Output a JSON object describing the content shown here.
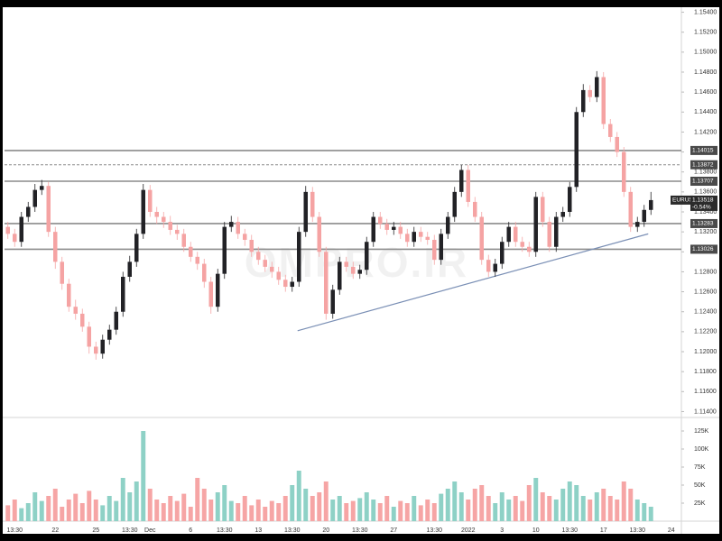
{
  "chart_data": {
    "type": "candlestick",
    "symbol": "EURUSD",
    "last_label": "1.13518",
    "change": "-0.54%",
    "watermark": "OMPRO.IR",
    "up_color": "#222226",
    "down_color": "#f5a3a3",
    "volume_up_color": "#8ed1c6",
    "volume_down_color": "#f6a5a5",
    "level_color": "#8c8c8c",
    "trend_color": "#7a8fb5",
    "categories": [
      null,
      "13:30",
      null,
      null,
      null,
      null,
      null,
      "22",
      null,
      null,
      null,
      null,
      null,
      "25",
      null,
      null,
      null,
      null,
      "13:30",
      null,
      null,
      "Dec",
      null,
      null,
      null,
      null,
      null,
      "6",
      null,
      null,
      null,
      null,
      "13:30",
      null,
      null,
      null,
      null,
      "13",
      null,
      null,
      null,
      null,
      "13:30",
      null,
      null,
      null,
      null,
      "20",
      null,
      null,
      null,
      null,
      "13:30",
      null,
      null,
      null,
      null,
      "27",
      null,
      null,
      null,
      null,
      null,
      "13:30",
      null,
      null,
      null,
      null,
      "2022",
      null,
      null,
      null,
      null,
      "3",
      null,
      null,
      null,
      null,
      "10",
      null,
      null,
      null,
      null,
      "13:30",
      null,
      null,
      null,
      null,
      "17",
      null,
      null,
      null,
      null,
      "13:30",
      null,
      null,
      null,
      null,
      "24",
      null
    ],
    "open": [
      1.1325,
      1.1318,
      1.131,
      1.1335,
      1.1345,
      1.1362,
      1.1366,
      1.132,
      1.129,
      1.1268,
      1.1245,
      1.1238,
      1.1225,
      1.1205,
      1.1198,
      1.1212,
      1.1222,
      1.124,
      1.1275,
      1.129,
      1.1318,
      1.1362,
      1.134,
      1.1335,
      1.133,
      1.1322,
      1.1318,
      1.1305,
      1.1295,
      1.1288,
      1.127,
      1.1245,
      1.1278,
      1.1325,
      1.133,
      1.1318,
      1.1312,
      1.13,
      1.1292,
      1.1285,
      1.128,
      1.1272,
      1.1265,
      1.127,
      1.132,
      1.136,
      1.1335,
      1.13,
      1.1238,
      1.1262,
      1.129,
      1.1285,
      1.1278,
      1.1282,
      1.131,
      1.1335,
      1.1328,
      1.1322,
      1.1325,
      1.1318,
      1.131,
      1.132,
      1.1315,
      1.1312,
      1.1292,
      1.1318,
      1.1335,
      1.136,
      1.1382,
      1.135,
      1.1335,
      1.1292,
      1.128,
      1.1288,
      1.131,
      1.1325,
      1.131,
      1.1305,
      1.13,
      1.1355,
      1.133,
      1.1305,
      1.1335,
      1.134,
      1.1365,
      1.144,
      1.1462,
      1.1455,
      1.1475,
      1.1428,
      1.1415,
      1.14,
      1.136,
      1.1325,
      1.133,
      1.1342,
      null,
      null,
      null,
      null
    ],
    "high": [
      1.133,
      1.1323,
      1.134,
      1.135,
      1.1368,
      1.1372,
      1.137,
      1.1325,
      1.1295,
      1.1273,
      1.1252,
      1.1243,
      1.123,
      1.121,
      1.1217,
      1.1227,
      1.1245,
      1.128,
      1.1296,
      1.1323,
      1.1368,
      1.1367,
      1.1345,
      1.134,
      1.1336,
      1.1327,
      1.1323,
      1.131,
      1.13,
      1.1293,
      1.1275,
      1.1283,
      1.133,
      1.1336,
      1.1335,
      1.1323,
      1.1317,
      1.1305,
      1.1297,
      1.129,
      1.1285,
      1.1277,
      1.1275,
      1.1325,
      1.1366,
      1.1365,
      1.134,
      1.1305,
      1.1267,
      1.1295,
      1.1295,
      1.129,
      1.1287,
      1.1315,
      1.134,
      1.134,
      1.1333,
      1.133,
      1.133,
      1.1323,
      1.1325,
      1.1325,
      1.132,
      1.1317,
      1.1323,
      1.134,
      1.1365,
      1.1387,
      1.1387,
      1.1355,
      1.134,
      1.1297,
      1.1293,
      1.1315,
      1.133,
      1.133,
      1.1315,
      1.131,
      1.136,
      1.136,
      1.1335,
      1.134,
      1.1345,
      1.137,
      1.1445,
      1.1468,
      1.1467,
      1.1481,
      1.148,
      1.1433,
      1.142,
      1.1405,
      1.1365,
      1.1335,
      1.1347,
      1.136,
      null,
      null,
      null,
      null
    ],
    "low": [
      1.1313,
      1.1305,
      1.1305,
      1.133,
      1.134,
      1.1357,
      1.1315,
      1.1283,
      1.1262,
      1.124,
      1.1232,
      1.122,
      1.1198,
      1.1192,
      1.1193,
      1.1207,
      1.1217,
      1.1235,
      1.127,
      1.1285,
      1.1313,
      1.1335,
      1.1328,
      1.1324,
      1.1317,
      1.1312,
      1.13,
      1.129,
      1.1282,
      1.1264,
      1.1238,
      1.124,
      1.1273,
      1.132,
      1.1313,
      1.1306,
      1.1295,
      1.1287,
      1.128,
      1.1274,
      1.1267,
      1.126,
      1.126,
      1.1265,
      1.1315,
      1.133,
      1.1295,
      1.1232,
      1.1233,
      1.1257,
      1.128,
      1.1273,
      1.1273,
      1.1277,
      1.1305,
      1.1323,
      1.1317,
      1.1317,
      1.1313,
      1.1305,
      1.1305,
      1.131,
      1.1307,
      1.1287,
      1.1287,
      1.1313,
      1.133,
      1.1355,
      1.1345,
      1.133,
      1.1287,
      1.1275,
      1.1275,
      1.1283,
      1.1305,
      1.1305,
      1.13,
      1.1295,
      1.1295,
      1.1325,
      1.13,
      1.13,
      1.133,
      1.1335,
      1.136,
      1.1435,
      1.145,
      1.145,
      1.1423,
      1.141,
      1.1395,
      1.1355,
      1.132,
      1.132,
      1.1325,
      1.1337,
      null,
      null,
      null,
      null
    ],
    "close": [
      1.1318,
      1.131,
      1.1335,
      1.1345,
      1.1362,
      1.1366,
      1.132,
      1.129,
      1.1268,
      1.1245,
      1.1238,
      1.1225,
      1.1205,
      1.1198,
      1.1212,
      1.1222,
      1.124,
      1.1275,
      1.129,
      1.1318,
      1.1362,
      1.134,
      1.1335,
      1.133,
      1.1322,
      1.1318,
      1.1305,
      1.1295,
      1.1288,
      1.127,
      1.1245,
      1.1278,
      1.1325,
      1.133,
      1.1318,
      1.1312,
      1.13,
      1.1292,
      1.1285,
      1.128,
      1.1272,
      1.1265,
      1.127,
      1.132,
      1.136,
      1.1335,
      1.13,
      1.1238,
      1.1262,
      1.129,
      1.1285,
      1.1278,
      1.1282,
      1.131,
      1.1335,
      1.1328,
      1.1322,
      1.1325,
      1.1318,
      1.131,
      1.132,
      1.1315,
      1.1312,
      1.1292,
      1.1318,
      1.1335,
      1.136,
      1.1382,
      1.135,
      1.1335,
      1.1292,
      1.128,
      1.1288,
      1.131,
      1.1325,
      1.131,
      1.1305,
      1.13,
      1.1355,
      1.133,
      1.1305,
      1.1335,
      1.134,
      1.1365,
      1.144,
      1.1462,
      1.1455,
      1.1475,
      1.1428,
      1.1415,
      1.14,
      1.136,
      1.1325,
      1.133,
      1.1342,
      1.13518,
      null,
      null,
      null,
      null
    ],
    "volume": [
      22000,
      30000,
      18000,
      25000,
      40000,
      28000,
      35000,
      45000,
      20000,
      30000,
      38000,
      25000,
      42000,
      30000,
      22000,
      35000,
      28000,
      60000,
      40000,
      55000,
      125000,
      45000,
      30000,
      25000,
      35000,
      28000,
      38000,
      20000,
      60000,
      45000,
      30000,
      40000,
      50000,
      28000,
      25000,
      35000,
      22000,
      30000,
      20000,
      28000,
      25000,
      35000,
      50000,
      70000,
      45000,
      35000,
      40000,
      55000,
      30000,
      35000,
      25000,
      28000,
      32000,
      40000,
      30000,
      25000,
      35000,
      20000,
      28000,
      25000,
      35000,
      22000,
      30000,
      25000,
      38000,
      45000,
      55000,
      40000,
      30000,
      45000,
      50000,
      35000,
      25000,
      40000,
      30000,
      35000,
      28000,
      50000,
      60000,
      40000,
      35000,
      30000,
      45000,
      55000,
      50000,
      35000,
      30000,
      40000,
      45000,
      35000,
      30000,
      55000,
      45000,
      30000,
      25000,
      20000,
      null,
      null,
      null,
      null
    ],
    "ylim": [
      1.1135,
      1.1545
    ],
    "yticks": [
      {
        "value": 1.114,
        "label": "1.11400"
      },
      {
        "value": 1.116,
        "label": "1.11600"
      },
      {
        "value": 1.118,
        "label": "1.11800"
      },
      {
        "value": 1.12,
        "label": "1.12000"
      },
      {
        "value": 1.122,
        "label": "1.12200"
      },
      {
        "value": 1.124,
        "label": "1.12400"
      },
      {
        "value": 1.126,
        "label": "1.12600"
      },
      {
        "value": 1.128,
        "label": "1.12800"
      },
      {
        "value": 1.13,
        "label": "1.13000"
      },
      {
        "value": 1.132,
        "label": "1.13200"
      },
      {
        "value": 1.134,
        "label": "1.13400"
      },
      {
        "value": 1.136,
        "label": "1.13600"
      },
      {
        "value": 1.138,
        "label": "1.13800"
      },
      {
        "value": 1.14,
        "label": "1.14000"
      },
      {
        "value": 1.142,
        "label": "1.14200"
      },
      {
        "value": 1.144,
        "label": "1.14400"
      },
      {
        "value": 1.146,
        "label": "1.14600"
      },
      {
        "value": 1.148,
        "label": "1.14800"
      },
      {
        "value": 1.15,
        "label": "1.15000"
      },
      {
        "value": 1.152,
        "label": "1.15200"
      },
      {
        "value": 1.154,
        "label": "1.15400"
      }
    ],
    "volume_ylim": [
      0,
      140000
    ],
    "volume_ticks": [
      {
        "value": 25000,
        "label": "25K"
      },
      {
        "value": 50000,
        "label": "50K"
      },
      {
        "value": 75000,
        "label": "75K"
      },
      {
        "value": 100000,
        "label": "100K"
      },
      {
        "value": 125000,
        "label": "125K"
      }
    ],
    "levels": [
      {
        "value": 1.14015,
        "label": "1.14015"
      },
      {
        "value": 1.13872,
        "label": "1.13872",
        "dashed": true
      },
      {
        "value": 1.13707,
        "label": "1.13707"
      },
      {
        "value": 1.13283,
        "label": "1.13283"
      },
      {
        "value": 1.13026,
        "label": "1.13026"
      }
    ],
    "trendline": {
      "x": [
        42.8,
        94.6
      ],
      "values": [
        1.1221,
        1.1318
      ]
    }
  }
}
